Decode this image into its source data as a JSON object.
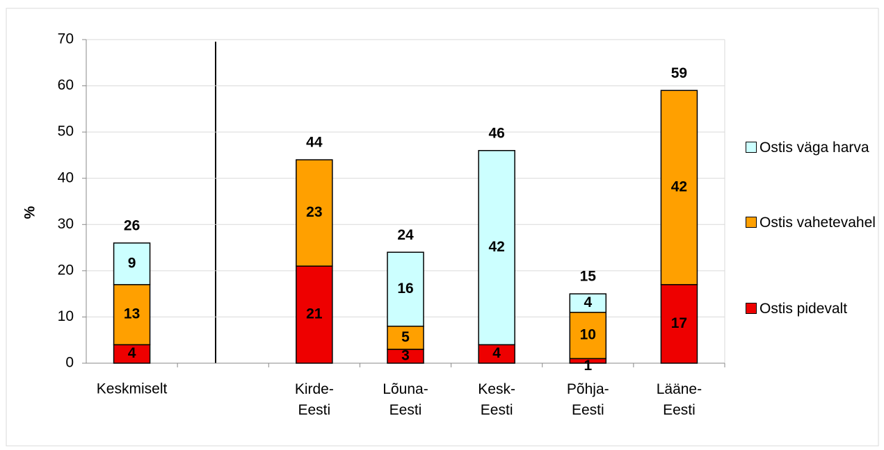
{
  "chart_data": {
    "type": "stacked_bar",
    "y_label": "%",
    "categories": [
      "Keskmiselt",
      null,
      "Kirde-Eesti",
      "Lõuna-Eesti",
      "Kesk-Eesti",
      "Põhja-Eesti",
      "Lääne-Eesti"
    ],
    "series": [
      {
        "name": "Ostis pidevalt",
        "color": "#ee0000",
        "values": [
          4,
          null,
          21,
          3,
          4,
          1,
          17
        ]
      },
      {
        "name": "Ostis vahetevahel",
        "color": "#ffa000",
        "values": [
          13,
          null,
          23,
          5,
          null,
          10,
          42
        ]
      },
      {
        "name": "Ostis väga harva",
        "color": "#ccffff",
        "values": [
          9,
          null,
          null,
          16,
          42,
          4,
          null
        ]
      }
    ],
    "totals": [
      26,
      null,
      44,
      24,
      46,
      15,
      59
    ],
    "ylim": [
      0,
      70
    ],
    "yticks": [
      0,
      10,
      20,
      30,
      40,
      50,
      60,
      70
    ],
    "grid": true
  }
}
